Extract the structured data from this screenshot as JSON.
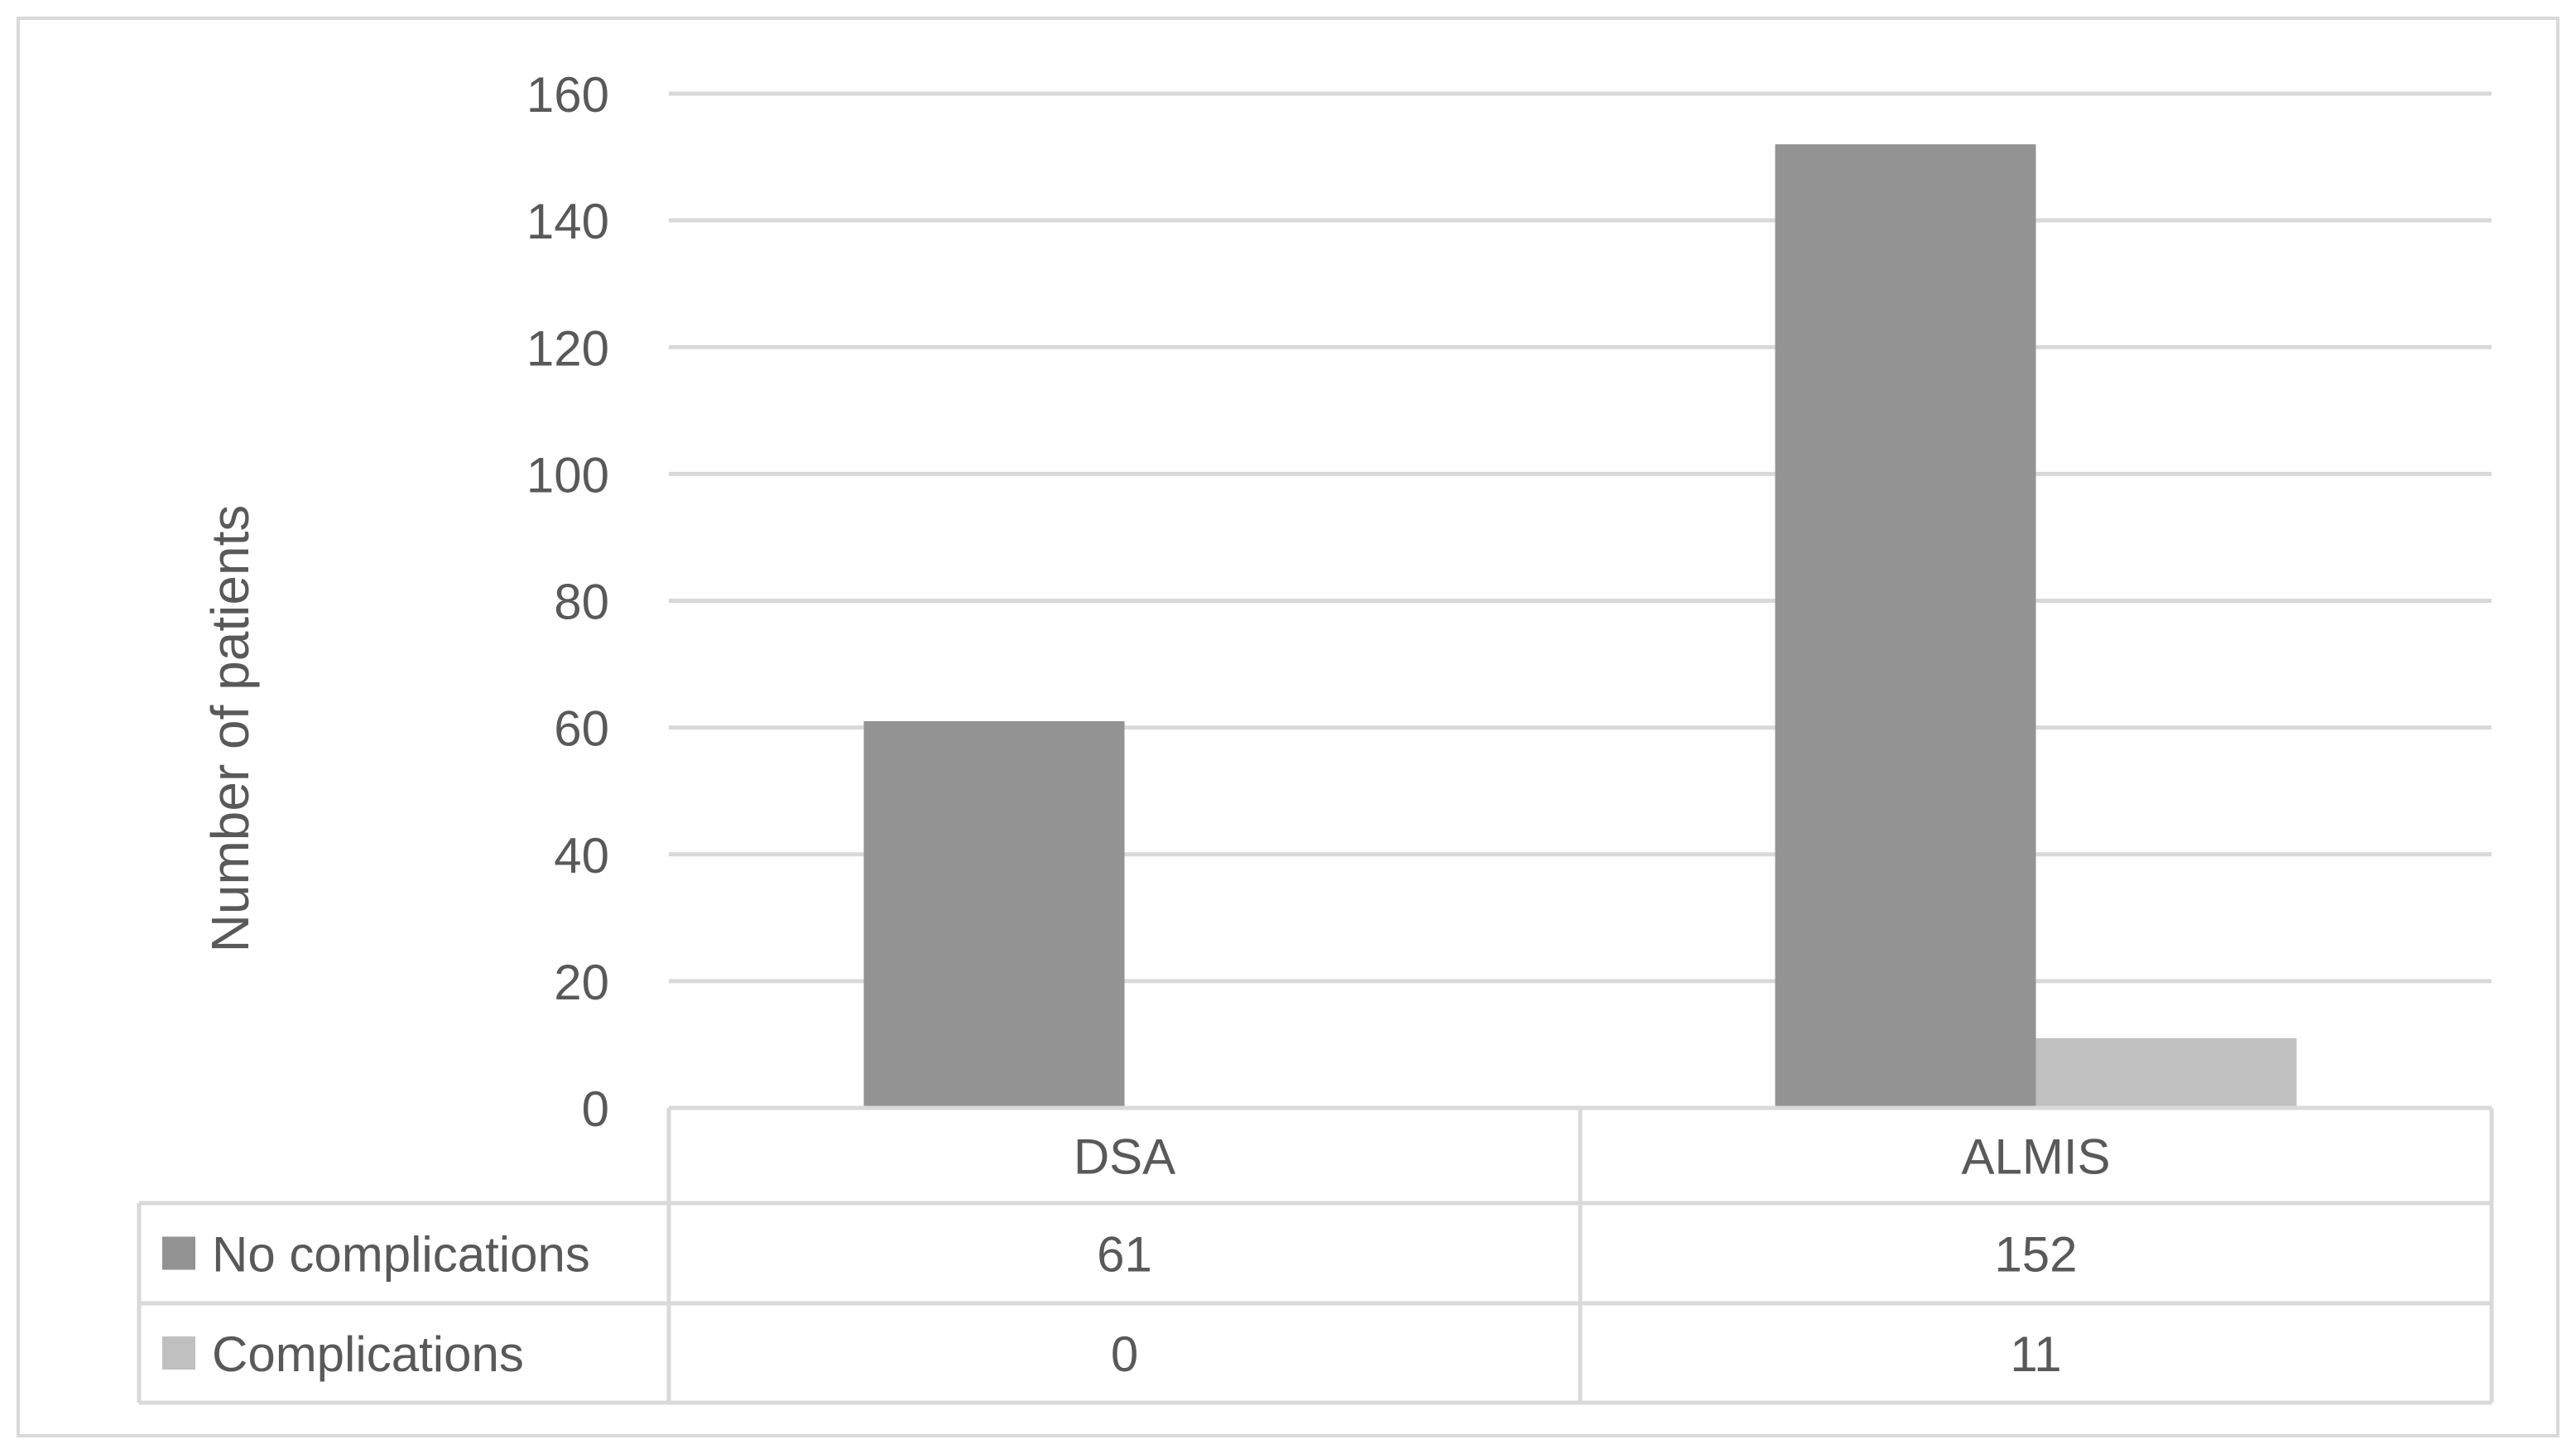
{
  "chart_data": {
    "type": "bar",
    "ylabel": "Number of patients",
    "ylim": [
      0,
      160
    ],
    "ytick_step": 20,
    "yticks": [
      "0",
      "20",
      "40",
      "60",
      "80",
      "100",
      "120",
      "140",
      "160"
    ],
    "categories": [
      "DSA",
      "ALMIS"
    ],
    "grid": true,
    "legend": "data-table-left",
    "series": [
      {
        "name": "No complications",
        "color": "#939393",
        "values": [
          61,
          152
        ]
      },
      {
        "name": "Complications",
        "color": "#c0c0c0",
        "values": [
          0,
          11
        ]
      }
    ],
    "table": {
      "rows": [
        {
          "label": "No complications",
          "cells": [
            "61",
            "152"
          ]
        },
        {
          "label": "Complications",
          "cells": [
            "0",
            "11"
          ]
        }
      ]
    }
  }
}
